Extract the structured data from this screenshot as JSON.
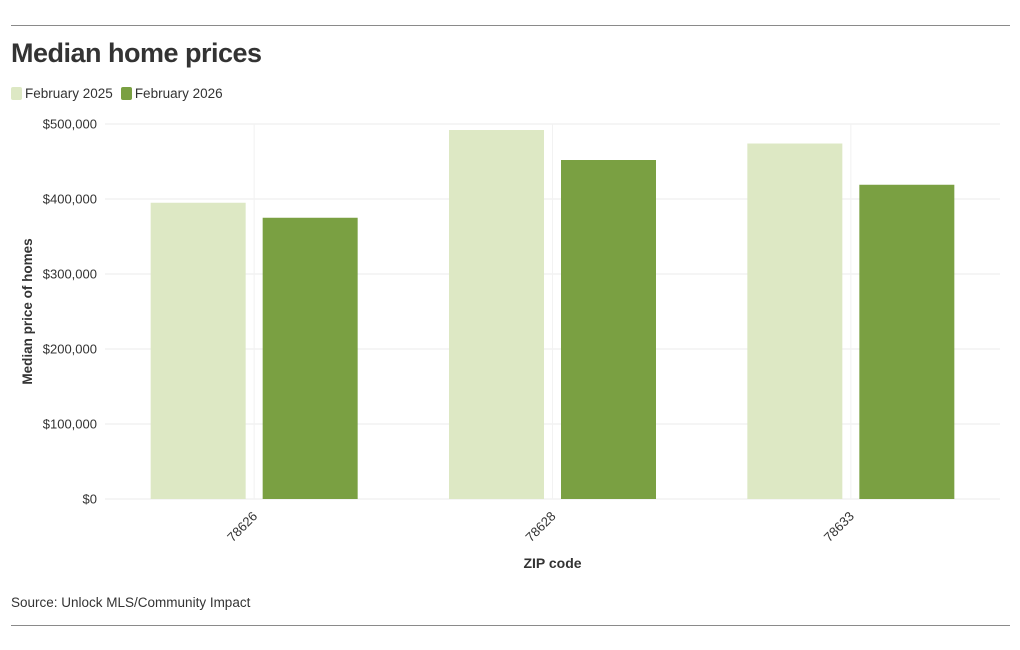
{
  "title": "Median home prices",
  "source": "Source: Unlock MLS/Community Impact",
  "colors": {
    "series_2025": "#dde8c4",
    "series_2026": "#7aa042",
    "grid": "#ebebeb",
    "text": "#333333",
    "rule": "#8a8a8a"
  },
  "chart_data": {
    "type": "bar",
    "title": "Median home prices",
    "xlabel": "ZIP code",
    "ylabel": "Median price of homes",
    "categories": [
      "78626",
      "78628",
      "78633"
    ],
    "series": [
      {
        "name": "February 2025",
        "values": [
          395000,
          492000,
          474000
        ]
      },
      {
        "name": "February 2026",
        "values": [
          375000,
          452000,
          419000
        ]
      }
    ],
    "ylim": [
      0,
      500000
    ],
    "yticks": [
      0,
      100000,
      200000,
      300000,
      400000,
      500000
    ],
    "ytick_labels": [
      "$0",
      "$100,000",
      "$200,000",
      "$300,000",
      "$400,000",
      "$500,000"
    ],
    "grid": true,
    "legend_position": "top-left"
  }
}
